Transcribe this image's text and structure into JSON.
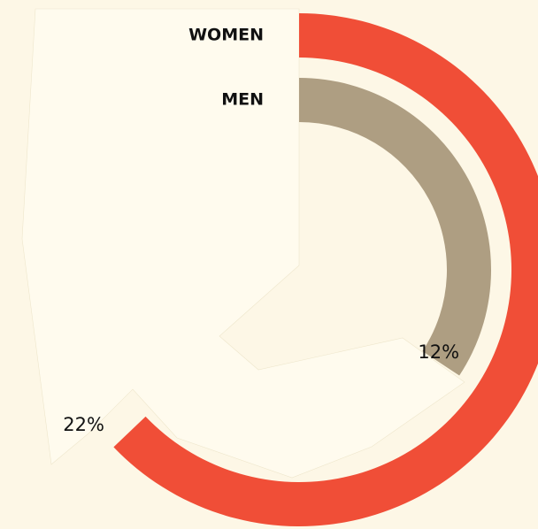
{
  "chart_data": {
    "type": "radial-bar",
    "categories": [
      "WOMEN",
      "MEN"
    ],
    "values": [
      22,
      12
    ],
    "value_labels": [
      "22%",
      "12%"
    ],
    "colors": [
      "#f04e37",
      "#ae9e82"
    ],
    "rlim": [
      0,
      35
    ]
  }
}
